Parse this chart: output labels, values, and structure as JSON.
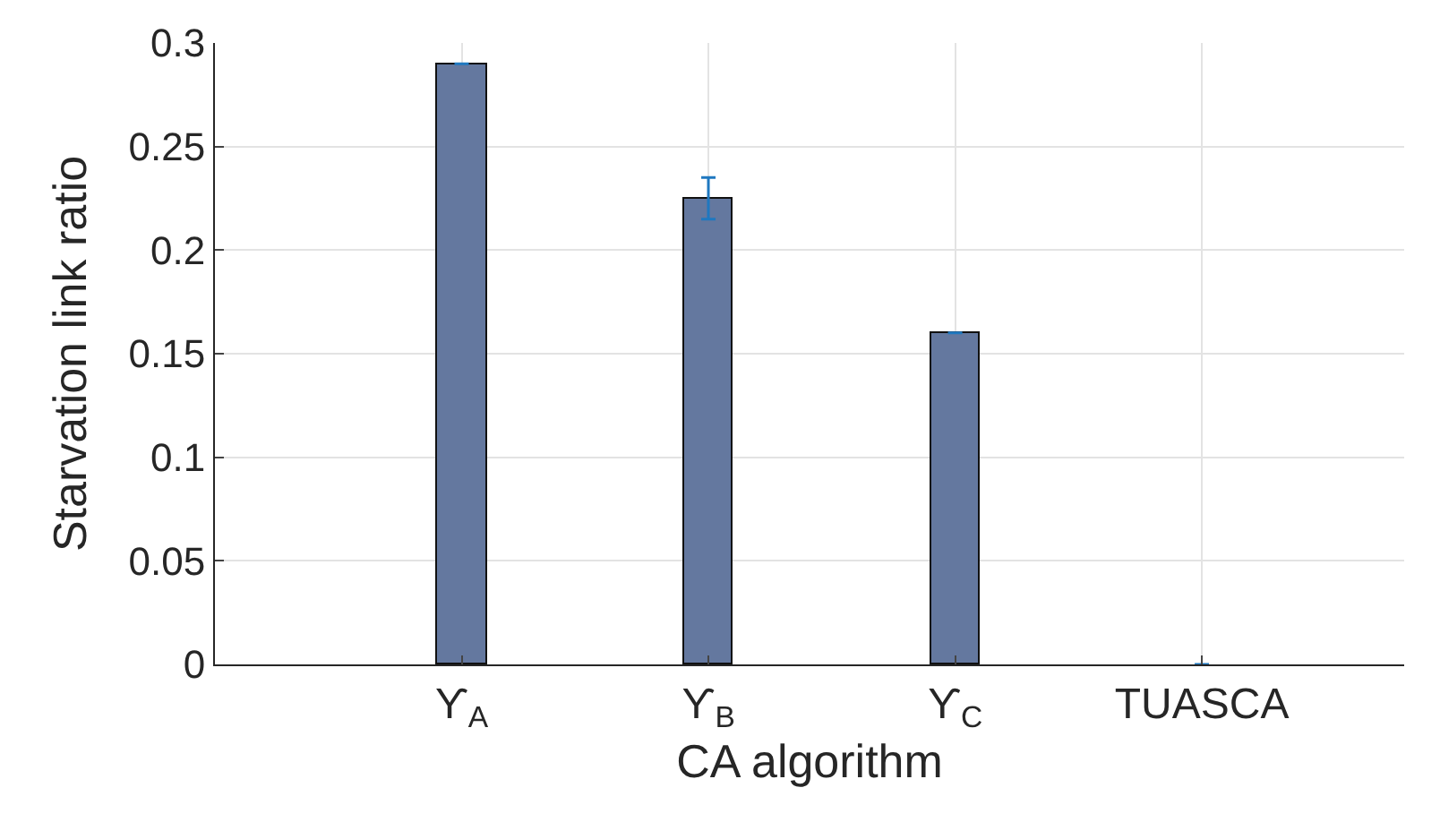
{
  "chart_data": {
    "type": "bar",
    "xlabel": "CA algorithm",
    "ylabel": "Starvation link ratio",
    "categories": [
      "ϒ$_{A}$",
      "ϒ$_{B}$",
      "ϒ$_{C}$",
      "TUASCA"
    ],
    "series": [
      {
        "color": "#64789f",
        "values": [
          0.29,
          0.225,
          0.16,
          0
        ],
        "errors": [
          null,
          0.01,
          null,
          null
        ]
      }
    ],
    "ylim": [
      0,
      0.3
    ],
    "yticks": [
      0,
      0.05,
      0.1,
      0.15,
      0.2,
      0.25,
      0.3
    ],
    "grid": true
  }
}
